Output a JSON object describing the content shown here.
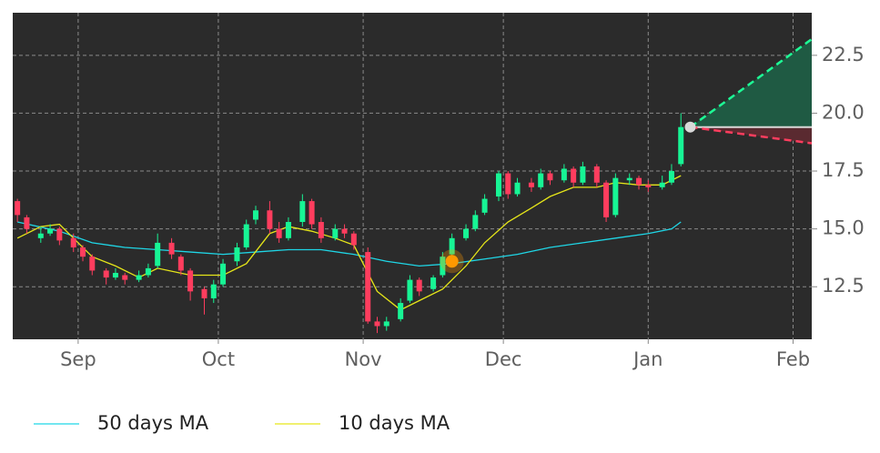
{
  "chart_data": {
    "type": "candlestick",
    "xlim": [
      -14,
      157
    ],
    "xticks": [
      {
        "value": 0,
        "label": "Sep"
      },
      {
        "value": 30,
        "label": "Oct"
      },
      {
        "value": 61,
        "label": "Nov"
      },
      {
        "value": 91,
        "label": "Dec"
      },
      {
        "value": 122,
        "label": "Jan"
      },
      {
        "value": 153,
        "label": "Feb"
      }
    ],
    "ylim": [
      10.23,
      24.34
    ],
    "yticks": [
      12.5,
      15.0,
      17.5,
      20.0,
      22.5
    ],
    "grid": true,
    "legend": "bottom-left",
    "candles": {
      "up_color": "#17f595",
      "down_color": "#ff3d5e",
      "x": [
        -13,
        -11,
        -8,
        -6,
        -4,
        -1,
        1,
        3,
        6,
        8,
        10,
        13,
        15,
        17,
        20,
        22,
        24,
        27,
        29,
        31,
        34,
        36,
        38,
        41,
        43,
        45,
        48,
        50,
        52,
        55,
        57,
        59,
        62,
        64,
        66,
        69,
        71,
        73,
        76,
        78,
        80,
        83,
        85,
        87,
        90,
        92,
        94,
        97,
        99,
        101,
        104,
        106,
        108,
        111,
        113,
        115,
        118,
        120,
        122,
        125,
        127,
        129
      ],
      "open": [
        16.2,
        15.5,
        14.6,
        14.8,
        15.0,
        14.6,
        14.2,
        13.8,
        13.2,
        12.9,
        13.0,
        12.8,
        13.0,
        13.4,
        14.4,
        13.8,
        13.2,
        12.4,
        12.0,
        12.6,
        13.6,
        14.2,
        15.4,
        15.8,
        15.0,
        14.6,
        15.3,
        16.2,
        15.3,
        14.6,
        15.0,
        14.8,
        14.0,
        11.0,
        10.8,
        11.1,
        11.9,
        12.8,
        12.4,
        13.0,
        13.9,
        14.6,
        15.0,
        15.7,
        16.4,
        17.4,
        16.5,
        17.0,
        16.8,
        17.4,
        17.1,
        17.6,
        17.0,
        17.7,
        17.0,
        15.6,
        17.1,
        17.2,
        16.9,
        16.8,
        17.0,
        17.8
      ],
      "high": [
        16.3,
        15.6,
        15.1,
        15.2,
        15.1,
        14.8,
        14.3,
        13.9,
        13.3,
        13.3,
        13.1,
        13.2,
        13.5,
        14.8,
        14.6,
        13.9,
        13.3,
        12.5,
        12.8,
        13.7,
        14.4,
        15.4,
        16.0,
        16.2,
        15.3,
        15.5,
        16.5,
        16.3,
        15.5,
        15.2,
        15.2,
        14.9,
        14.2,
        11.2,
        11.2,
        12.0,
        13.0,
        12.9,
        13.0,
        14.0,
        14.8,
        15.2,
        15.8,
        16.5,
        17.5,
        17.5,
        17.2,
        17.2,
        17.6,
        17.5,
        17.8,
        17.7,
        17.9,
        17.8,
        17.1,
        17.4,
        17.4,
        17.3,
        17.1,
        17.3,
        17.8,
        20.0
      ],
      "low": [
        15.3,
        14.8,
        14.4,
        14.7,
        14.3,
        14.0,
        13.6,
        13.0,
        12.6,
        12.8,
        12.6,
        12.7,
        12.9,
        13.3,
        13.7,
        13.0,
        11.9,
        11.3,
        11.8,
        12.5,
        13.4,
        14.1,
        15.2,
        14.8,
        14.4,
        14.5,
        15.1,
        15.0,
        14.4,
        14.5,
        14.6,
        14.1,
        10.9,
        10.5,
        10.6,
        11.0,
        11.8,
        12.1,
        12.3,
        12.9,
        13.8,
        14.5,
        14.9,
        15.6,
        16.2,
        16.3,
        16.4,
        16.6,
        16.7,
        16.9,
        17.0,
        16.8,
        16.9,
        16.8,
        15.3,
        15.5,
        16.9,
        16.7,
        16.6,
        16.7,
        16.9,
        17.7
      ],
      "close": [
        15.6,
        15.0,
        14.8,
        15.0,
        14.5,
        14.2,
        13.8,
        13.2,
        12.9,
        13.1,
        12.8,
        13.0,
        13.3,
        14.4,
        13.9,
        13.2,
        12.3,
        12.0,
        12.6,
        13.5,
        14.2,
        15.2,
        15.8,
        15.0,
        14.6,
        15.3,
        16.2,
        15.2,
        14.6,
        15.0,
        14.8,
        14.3,
        11.0,
        10.8,
        11.0,
        11.8,
        12.8,
        12.3,
        12.9,
        13.8,
        14.6,
        15.0,
        15.6,
        16.3,
        17.4,
        16.5,
        17.0,
        16.8,
        17.4,
        17.1,
        17.6,
        17.0,
        17.7,
        17.0,
        15.5,
        17.2,
        17.2,
        16.9,
        16.8,
        17.0,
        17.5,
        19.4
      ]
    },
    "series": [
      {
        "name": "50 days MA",
        "color": "#1fd6e6",
        "x": [
          -13,
          -4,
          3,
          10,
          17,
          24,
          31,
          38,
          45,
          52,
          59,
          66,
          73,
          80,
          87,
          94,
          101,
          108,
          115,
          122,
          127,
          129
        ],
        "values": [
          15.3,
          14.9,
          14.4,
          14.2,
          14.1,
          14.0,
          13.9,
          14.0,
          14.1,
          14.1,
          13.9,
          13.6,
          13.4,
          13.5,
          13.7,
          13.9,
          14.2,
          14.4,
          14.6,
          14.8,
          15.0,
          15.3
        ]
      },
      {
        "name": "10 days MA",
        "color": "#e6e619",
        "x": [
          -13,
          -8,
          -4,
          -1,
          3,
          8,
          13,
          17,
          24,
          31,
          36,
          41,
          45,
          50,
          55,
          59,
          64,
          69,
          73,
          78,
          83,
          87,
          92,
          97,
          101,
          106,
          111,
          115,
          120,
          125,
          129
        ],
        "values": [
          14.6,
          15.1,
          15.2,
          14.6,
          13.8,
          13.4,
          12.9,
          13.3,
          13.0,
          13.0,
          13.5,
          14.8,
          15.1,
          14.9,
          14.6,
          14.3,
          12.3,
          11.5,
          11.9,
          12.4,
          13.4,
          14.4,
          15.3,
          15.9,
          16.4,
          16.8,
          16.8,
          17.0,
          16.9,
          16.9,
          17.3
        ]
      }
    ],
    "marker": {
      "x": 80,
      "y": 13.6,
      "color": "#ff9900"
    },
    "projection": {
      "x": [
        131,
        157
      ],
      "upper": [
        19.4,
        23.2
      ],
      "lower": [
        19.4,
        18.7
      ],
      "upper_color": "#1dfc96",
      "upper_fill": "#1f5a43",
      "lower_color": "#ff3d5e",
      "lower_fill": "#5a2a30",
      "base_color": "#d9d9d9"
    }
  }
}
